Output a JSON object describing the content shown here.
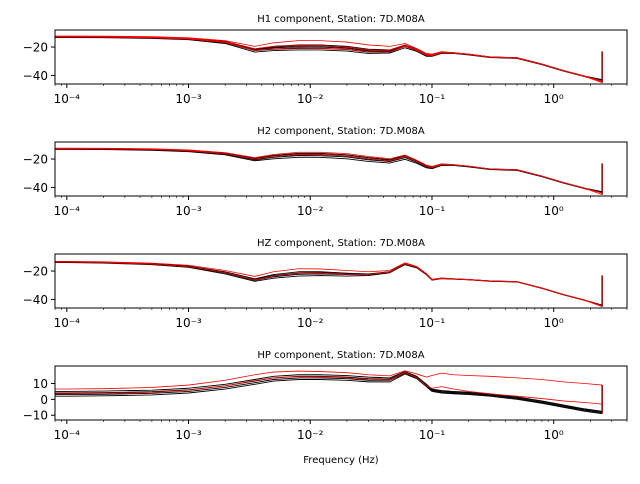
{
  "figure": {
    "xlabel": "Frequency (Hz)"
  },
  "chart_data": [
    {
      "type": "line",
      "title": "H1 component, Station: 7D.M08A",
      "xlabel": "",
      "ylabel": "",
      "xscale": "log",
      "xlim": [
        8e-05,
        4.0
      ],
      "ylim": [
        -46,
        -8
      ],
      "yticks": [
        -20,
        -40
      ],
      "xticks": [
        0.0001,
        0.001,
        0.01,
        0.1,
        1
      ],
      "xticklabels": [
        "10⁻⁴",
        "10⁻³",
        "10⁻²",
        "10⁻¹",
        "10⁰"
      ],
      "grid": false,
      "colors": {
        "day_curves": "#000000",
        "mean_curves": "#ff0000"
      },
      "x": [
        8e-05,
        0.0001,
        0.0002,
        0.0005,
        0.001,
        0.002,
        0.0035,
        0.005,
        0.008,
        0.012,
        0.02,
        0.03,
        0.045,
        0.06,
        0.075,
        0.09,
        0.1,
        0.12,
        0.15,
        0.2,
        0.3,
        0.5,
        0.8,
        1.2,
        1.8,
        2.5
      ],
      "series": [
        {
          "group": "black",
          "values": [
            -12.5,
            -12.5,
            -12.6,
            -13,
            -13.8,
            -16,
            -21.3,
            -19.5,
            -18.5,
            -18.5,
            -19.5,
            -21.5,
            -22,
            -18.5,
            -21.5,
            -25,
            -25.5,
            -23.5,
            -24,
            -25,
            -27,
            -27.5,
            -32,
            -36.5,
            -40.5,
            -43
          ]
        },
        {
          "group": "black",
          "values": [
            -13,
            -13,
            -13.1,
            -13.6,
            -14.5,
            -17,
            -22.5,
            -21.5,
            -21,
            -21,
            -21.8,
            -23.5,
            -23.5,
            -19.5,
            -22.5,
            -26,
            -26,
            -24,
            -24.3,
            -25.2,
            -27.2,
            -27.8,
            -32.2,
            -36.7,
            -40.7,
            -43.2
          ]
        },
        {
          "group": "black",
          "values": [
            -13.3,
            -13.3,
            -13.4,
            -13.9,
            -14.8,
            -17.5,
            -23.5,
            -22.5,
            -22,
            -22,
            -22.8,
            -24.5,
            -24.2,
            -20.5,
            -23,
            -26.5,
            -26.5,
            -24.5,
            -24.5,
            -25.5,
            -27.4,
            -28,
            -32.4,
            -36.9,
            -40.9,
            -43.4
          ]
        },
        {
          "group": "black",
          "values": [
            -12.8,
            -12.8,
            -12.9,
            -13.3,
            -14.2,
            -16.5,
            -22,
            -20.5,
            -19.8,
            -20,
            -20.8,
            -22.8,
            -23,
            -19,
            -22,
            -25.5,
            -25.8,
            -23.8,
            -24.2,
            -25.1,
            -27.1,
            -27.7,
            -32.1,
            -36.6,
            -40.6,
            -43.1
          ]
        },
        {
          "group": "black",
          "values": [
            -12.6,
            -12.6,
            -12.7,
            -13.1,
            -14,
            -16.2,
            -21.6,
            -20,
            -19,
            -19.2,
            -20.2,
            -22.2,
            -22.5,
            -18.8,
            -21.8,
            -25.2,
            -25.6,
            -23.6,
            -24.1,
            -25,
            -27,
            -27.6,
            -32,
            -36.5,
            -40.5,
            -43
          ]
        },
        {
          "group": "red",
          "values": [
            -12.2,
            -12.2,
            -12.3,
            -12.7,
            -13.5,
            -15.5,
            -19.5,
            -17,
            -15.5,
            -15.5,
            -16.5,
            -18.5,
            -19.5,
            -17.5,
            -21,
            -24.5,
            -25,
            -23.2,
            -24,
            -25,
            -27,
            -27.5,
            -32,
            -36.5,
            -40.5,
            -44
          ]
        },
        {
          "group": "red",
          "values": [
            -12.6,
            -12.6,
            -12.7,
            -13.1,
            -14,
            -16.2,
            -21.2,
            -19.5,
            -18.8,
            -19,
            -20,
            -22,
            -22.2,
            -18.6,
            -21.8,
            -25.2,
            -25.6,
            -23.6,
            -24.1,
            -25,
            -27,
            -27.6,
            -32,
            -36.5,
            -40.5,
            -44.5
          ]
        },
        {
          "group": "red",
          "values": [
            -12.9,
            -12.9,
            -13,
            -13.5,
            -14.4,
            -16.8,
            -22.3,
            -21.2,
            -20.6,
            -20.8,
            -21.6,
            -23.4,
            -23.4,
            -19.4,
            -22.4,
            -25.8,
            -26,
            -24,
            -24.3,
            -25.2,
            -27.2,
            -27.8,
            -32.2,
            -36.7,
            -40.7,
            -45
          ]
        }
      ]
    },
    {
      "type": "line",
      "title": "H2 component, Station: 7D.M08A",
      "xlabel": "",
      "ylabel": "",
      "xscale": "log",
      "xlim": [
        8e-05,
        4.0
      ],
      "ylim": [
        -46,
        -8
      ],
      "yticks": [
        -20,
        -40
      ],
      "xticks": [
        0.0001,
        0.001,
        0.01,
        0.1,
        1
      ],
      "xticklabels": [
        "10⁻⁴",
        "10⁻³",
        "10⁻²",
        "10⁻¹",
        "10⁰"
      ],
      "grid": false,
      "colors": {
        "day_curves": "#000000",
        "mean_curves": "#ff0000"
      },
      "x": [
        8e-05,
        0.0001,
        0.0002,
        0.0005,
        0.001,
        0.002,
        0.0035,
        0.005,
        0.008,
        0.012,
        0.02,
        0.03,
        0.045,
        0.06,
        0.075,
        0.09,
        0.1,
        0.12,
        0.15,
        0.2,
        0.3,
        0.5,
        0.8,
        1.2,
        1.8,
        2.5
      ],
      "series": [
        {
          "group": "black",
          "values": [
            -12.5,
            -12.5,
            -12.6,
            -13,
            -13.8,
            -15.8,
            -19.5,
            -17.5,
            -16,
            -16,
            -17,
            -19,
            -20.5,
            -17.5,
            -21,
            -24.5,
            -25.5,
            -23.5,
            -24,
            -25,
            -27,
            -27.5,
            -32,
            -36.5,
            -40.5,
            -43
          ]
        },
        {
          "group": "black",
          "values": [
            -12.9,
            -12.9,
            -13,
            -13.5,
            -14.4,
            -16.5,
            -20.5,
            -18.8,
            -17.5,
            -17.6,
            -18.5,
            -20.5,
            -21.8,
            -19,
            -22.2,
            -25.5,
            -26.2,
            -24,
            -24.3,
            -25.2,
            -27.2,
            -27.8,
            -32.2,
            -36.7,
            -40.7,
            -43.2
          ]
        },
        {
          "group": "black",
          "values": [
            -13.2,
            -13.2,
            -13.3,
            -13.8,
            -14.8,
            -17,
            -21.2,
            -19.8,
            -18.8,
            -18.8,
            -19.8,
            -21.7,
            -22.8,
            -20.2,
            -23,
            -26.2,
            -26.8,
            -24.5,
            -24.5,
            -25.5,
            -27.4,
            -28,
            -32.4,
            -36.9,
            -40.9,
            -43.4
          ]
        },
        {
          "group": "black",
          "values": [
            -12.7,
            -12.7,
            -12.8,
            -13.2,
            -14.1,
            -16.2,
            -20,
            -18,
            -16.8,
            -16.8,
            -17.8,
            -19.8,
            -21.2,
            -18.2,
            -21.6,
            -25,
            -25.8,
            -23.8,
            -24.2,
            -25.1,
            -27.1,
            -27.7,
            -32.1,
            -36.6,
            -40.6,
            -43.1
          ]
        },
        {
          "group": "red",
          "values": [
            -12.3,
            -12.3,
            -12.4,
            -12.8,
            -13.6,
            -15.5,
            -19,
            -16.8,
            -15.2,
            -15.2,
            -16.2,
            -18.2,
            -19.8,
            -17.2,
            -20.8,
            -24.3,
            -25.2,
            -23.3,
            -24,
            -25,
            -27,
            -27.5,
            -32,
            -36.5,
            -40.5,
            -44
          ]
        },
        {
          "group": "red",
          "values": [
            -12.8,
            -12.8,
            -12.9,
            -13.3,
            -14.2,
            -16.2,
            -20,
            -18,
            -16.8,
            -16.9,
            -17.8,
            -19.8,
            -21.2,
            -18.4,
            -21.7,
            -25.1,
            -25.9,
            -23.8,
            -24.2,
            -25.1,
            -27.1,
            -27.7,
            -32.1,
            -36.6,
            -40.6,
            -45
          ]
        }
      ]
    },
    {
      "type": "line",
      "title": "HZ component, Station: 7D.M08A",
      "xlabel": "",
      "ylabel": "",
      "xscale": "log",
      "xlim": [
        8e-05,
        4.0
      ],
      "ylim": [
        -46,
        -8
      ],
      "yticks": [
        -20,
        -40
      ],
      "xticks": [
        0.0001,
        0.001,
        0.01,
        0.1,
        1
      ],
      "xticklabels": [
        "10⁻⁴",
        "10⁻³",
        "10⁻²",
        "10⁻¹",
        "10⁰"
      ],
      "grid": false,
      "colors": {
        "day_curves": "#000000",
        "mean_curves": "#ff0000"
      },
      "x": [
        8e-05,
        0.0001,
        0.0002,
        0.0005,
        0.001,
        0.002,
        0.0035,
        0.005,
        0.008,
        0.012,
        0.02,
        0.03,
        0.045,
        0.06,
        0.075,
        0.09,
        0.1,
        0.12,
        0.15,
        0.2,
        0.3,
        0.5,
        0.8,
        1.2,
        1.8,
        2.5
      ],
      "series": [
        {
          "group": "black",
          "values": [
            -13.5,
            -13.5,
            -13.8,
            -14.8,
            -16.5,
            -20.5,
            -25.5,
            -22.5,
            -20.5,
            -20.5,
            -21.5,
            -22,
            -20.5,
            -14.5,
            -17,
            -22,
            -26,
            -25,
            -25.5,
            -26,
            -27,
            -27.5,
            -32,
            -36.5,
            -40.5,
            -44
          ]
        },
        {
          "group": "black",
          "values": [
            -13.8,
            -13.8,
            -14.1,
            -15.2,
            -17,
            -21.3,
            -26.5,
            -24,
            -22.3,
            -22,
            -22.5,
            -22.6,
            -20.8,
            -15,
            -17.4,
            -22.3,
            -26.2,
            -25.2,
            -25.6,
            -26.1,
            -27.1,
            -27.6,
            -32.1,
            -36.6,
            -40.6,
            -44.1
          ]
        },
        {
          "group": "black",
          "values": [
            -14,
            -14,
            -14.4,
            -15.5,
            -17.4,
            -22,
            -27.2,
            -25,
            -23.5,
            -23.2,
            -23.5,
            -23.2,
            -21.2,
            -15.5,
            -17.8,
            -22.6,
            -26.4,
            -25.4,
            -25.7,
            -26.2,
            -27.2,
            -27.7,
            -32.2,
            -36.7,
            -40.7,
            -44.2
          ]
        },
        {
          "group": "black",
          "values": [
            -13.6,
            -13.6,
            -13.9,
            -15,
            -16.8,
            -20.9,
            -26,
            -23.2,
            -21.4,
            -21.2,
            -22,
            -22.3,
            -20.6,
            -14.8,
            -17.2,
            -22.1,
            -26.1,
            -25.1,
            -25.5,
            -26,
            -27,
            -27.5,
            -32,
            -36.5,
            -40.5,
            -44
          ]
        },
        {
          "group": "red",
          "values": [
            -13.2,
            -13.2,
            -13.5,
            -14.4,
            -15.9,
            -19.6,
            -23.8,
            -20.5,
            -18.4,
            -18.5,
            -19.6,
            -20.5,
            -19.6,
            -14.2,
            -16.8,
            -21.8,
            -25.8,
            -24.8,
            -25.4,
            -25.9,
            -26.9,
            -27.4,
            -31.9,
            -36.4,
            -40.4,
            -44.5
          ]
        },
        {
          "group": "red",
          "values": [
            -13.7,
            -13.7,
            -14,
            -15.1,
            -16.9,
            -21,
            -26.2,
            -23.5,
            -21.7,
            -21.5,
            -22.2,
            -22.4,
            -20.7,
            -14.9,
            -17.3,
            -22.2,
            -26.2,
            -25.2,
            -25.6,
            -26.1,
            -27.1,
            -27.6,
            -32.1,
            -36.6,
            -40.6,
            -45
          ]
        }
      ]
    },
    {
      "type": "line",
      "title": "HP component, Station: 7D.M08A",
      "xlabel": "Frequency (Hz)",
      "ylabel": "",
      "xscale": "log",
      "xlim": [
        8e-05,
        4.0
      ],
      "ylim": [
        -13,
        21
      ],
      "yticks": [
        10,
        0,
        -10
      ],
      "xticks": [
        0.0001,
        0.001,
        0.01,
        0.1,
        1
      ],
      "xticklabels": [
        "10⁻⁴",
        "10⁻³",
        "10⁻²",
        "10⁻¹",
        "10⁰"
      ],
      "grid": false,
      "colors": {
        "day_curves": "#000000",
        "mean_curves": "#ff0000"
      },
      "x": [
        8e-05,
        0.0001,
        0.0002,
        0.0005,
        0.001,
        0.002,
        0.0035,
        0.005,
        0.008,
        0.012,
        0.02,
        0.03,
        0.045,
        0.06,
        0.075,
        0.09,
        0.1,
        0.12,
        0.15,
        0.2,
        0.3,
        0.5,
        0.8,
        1.2,
        1.8,
        2.5
      ],
      "series": [
        {
          "group": "black",
          "values": [
            2,
            2,
            2.2,
            2.8,
            4,
            6.5,
            9.5,
            11.5,
            12.5,
            12.5,
            12,
            11,
            11,
            16,
            13,
            8,
            5,
            4,
            3.5,
            3,
            2,
            0,
            -2.5,
            -5,
            -7.5,
            -9
          ]
        },
        {
          "group": "black",
          "values": [
            3,
            3,
            3.2,
            3.8,
            5,
            7.5,
            10.5,
            12.5,
            13.5,
            13.5,
            13,
            12,
            12,
            16.5,
            13.5,
            8.5,
            5.5,
            4.5,
            4,
            3.5,
            2.5,
            0.5,
            -2,
            -4.5,
            -7,
            -8.5
          ]
        },
        {
          "group": "black",
          "values": [
            4,
            4,
            4.2,
            4.8,
            6,
            8.5,
            11.5,
            13.5,
            14.5,
            14.5,
            14,
            13,
            12.8,
            17,
            14,
            9,
            6,
            5,
            4.5,
            4,
            3,
            1,
            -1.5,
            -4,
            -6.5,
            -8
          ]
        },
        {
          "group": "black",
          "values": [
            5,
            5,
            5.2,
            5.8,
            7,
            9.5,
            12.5,
            14.5,
            15.5,
            15.5,
            15,
            14,
            13.5,
            17.5,
            14.5,
            9.5,
            6.5,
            5.5,
            5,
            4.5,
            3.5,
            1.5,
            -1,
            -3.5,
            -6,
            -7.5
          ]
        },
        {
          "group": "red",
          "values": [
            3.5,
            3.5,
            3.7,
            4.4,
            5.8,
            8.5,
            11.8,
            13.5,
            14.3,
            14.2,
            13.6,
            12.5,
            12.2,
            17,
            13.5,
            8.5,
            7,
            8,
            6.5,
            5,
            3.5,
            2,
            0.5,
            -1,
            -2,
            -3
          ]
        },
        {
          "group": "red",
          "values": [
            6.5,
            6.5,
            6.7,
            7.5,
            9,
            12,
            15.5,
            17.2,
            17.8,
            17.5,
            16.8,
            15.5,
            14.8,
            18,
            16,
            14,
            15,
            16.5,
            15.5,
            15,
            14.5,
            13.5,
            12.5,
            11,
            10,
            9
          ]
        }
      ]
    }
  ]
}
